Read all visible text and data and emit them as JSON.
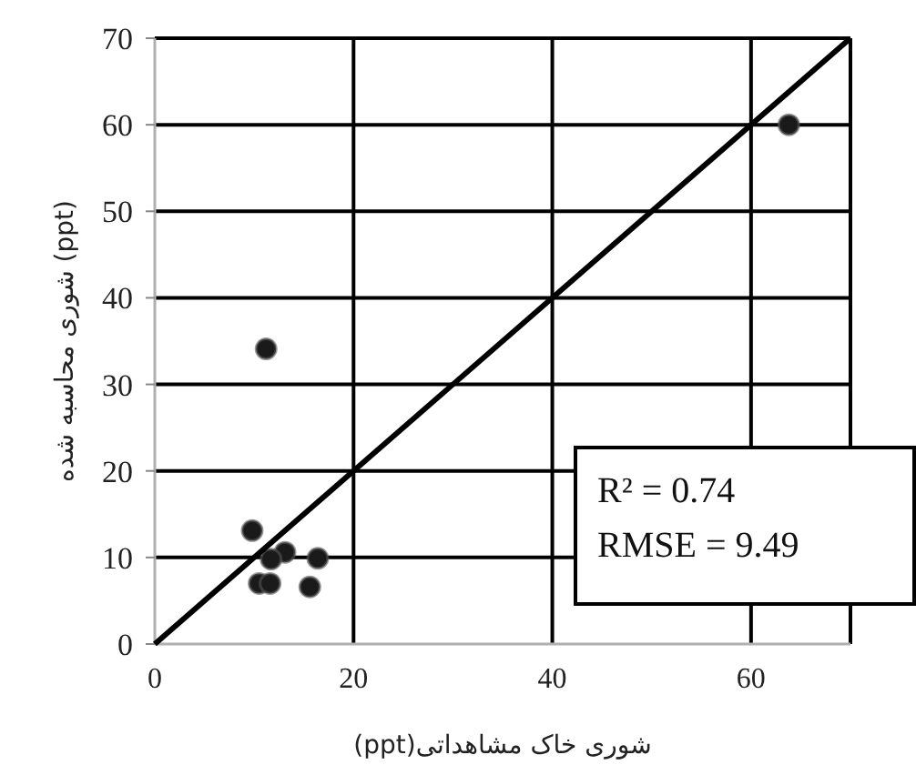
{
  "chart_data": {
    "type": "scatter",
    "xlabel": "شوری خاک مشاهداتی(ppt)",
    "ylabel": "شوری محاسبه شده (ppt)",
    "series": [
      {
        "type": "scatter",
        "marker": "circle",
        "color": "#1a1a1a",
        "x": [
          11.2,
          9.8,
          13.1,
          11.7,
          16.4,
          10.5,
          11.6,
          15.6,
          63.8
        ],
        "values": [
          34.1,
          13.1,
          10.6,
          9.8,
          9.9,
          7.0,
          7.0,
          6.6,
          60.0
        ]
      },
      {
        "type": "line",
        "color": "#000000",
        "x": [
          0,
          70
        ],
        "values": [
          0,
          70
        ]
      }
    ],
    "xlim": [
      0,
      70
    ],
    "ylim": [
      0,
      70
    ],
    "xticks": [
      0,
      20,
      40,
      60
    ],
    "yticks": [
      0,
      10,
      20,
      30,
      40,
      50,
      60,
      70
    ],
    "grid": true,
    "annotations": [
      "R² = 0.74",
      "RMSE = 9.49"
    ]
  }
}
